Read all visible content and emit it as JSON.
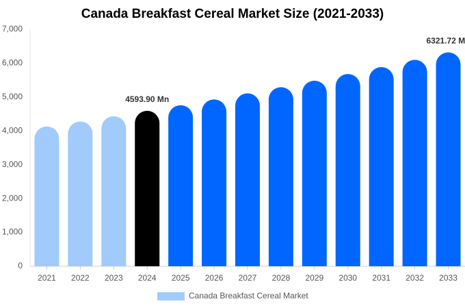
{
  "chart_data": {
    "type": "bar",
    "title": "Canada Breakfast Cereal Market Size (2021-2033)",
    "categories": [
      "2021",
      "2022",
      "2023",
      "2024",
      "2025",
      "2026",
      "2027",
      "2028",
      "2029",
      "2030",
      "2031",
      "2032",
      "2033"
    ],
    "series": [
      {
        "name": "Canada Breakfast Cereal Market",
        "color": "#a0cbfb",
        "colors": [
          "#a0cbfb",
          "#a0cbfb",
          "#a0cbfb",
          "#000000",
          "#0066ff",
          "#0066ff",
          "#0066ff",
          "#0066ff",
          "#0066ff",
          "#0066ff",
          "#0066ff",
          "#0066ff",
          "#0066ff"
        ],
        "values": [
          4131,
          4280,
          4434,
          4593.9,
          4760,
          4932,
          5110,
          5294,
          5485,
          5683,
          5888,
          6101,
          6321.72
        ],
        "value_labels": [
          null,
          null,
          null,
          "4593.90 Mn",
          null,
          null,
          null,
          null,
          null,
          null,
          null,
          null,
          "6321.72 Mn"
        ]
      }
    ],
    "ylim": [
      0,
      7000
    ],
    "yticks": [
      0,
      {
        "value": 1000,
        "label": "1,000"
      },
      {
        "value": 2000,
        "label": "2,000"
      },
      {
        "value": 3000,
        "label": "3,000"
      },
      {
        "value": 4000,
        "label": "4,000"
      },
      {
        "value": 5000,
        "label": "5,000"
      },
      {
        "value": 6000,
        "label": "6,000"
      },
      {
        "value": 7000,
        "label": "7,000"
      }
    ],
    "grid": false,
    "legend": "bottom"
  }
}
